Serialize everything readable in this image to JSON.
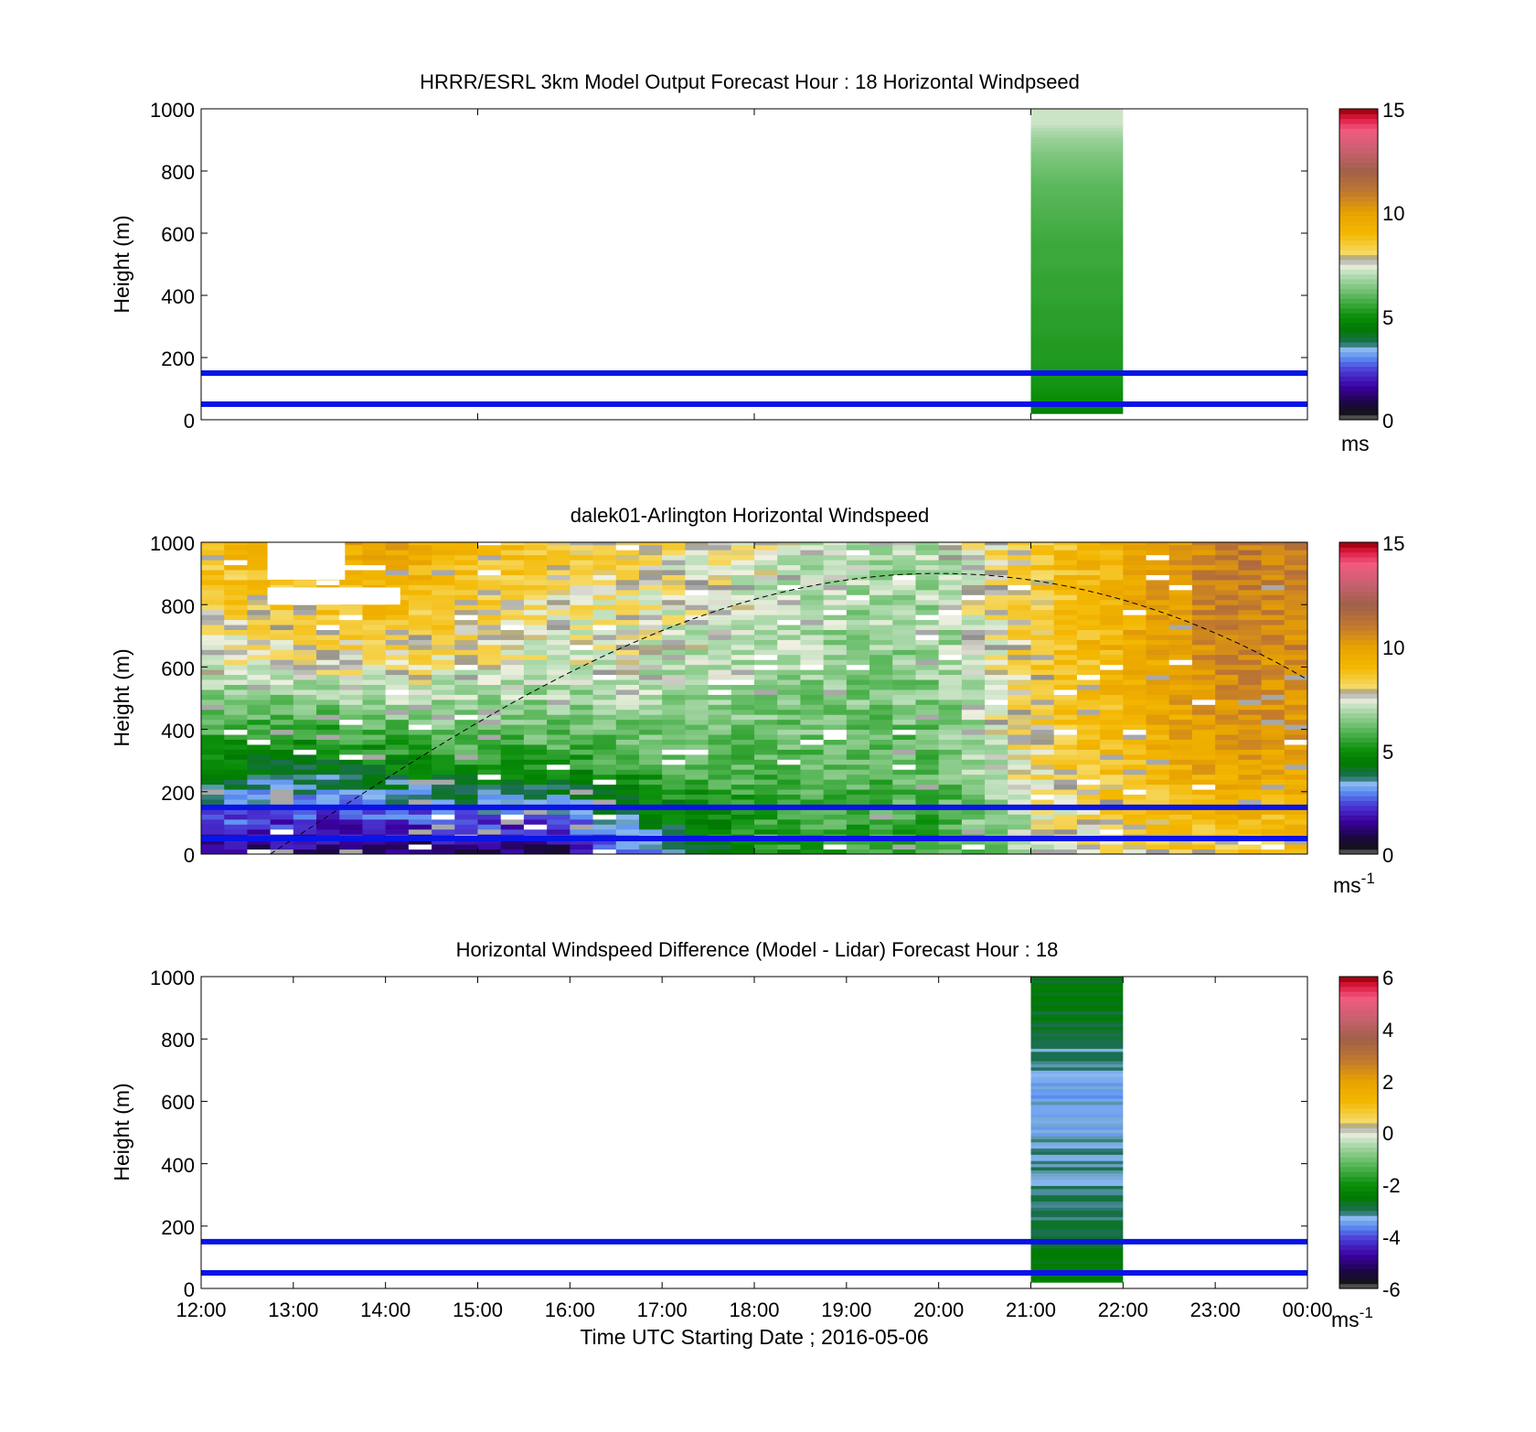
{
  "figure": {
    "x_tick_labels": [
      "12:00",
      "13:00",
      "14:00",
      "15:00",
      "16:00",
      "17:00",
      "18:00",
      "19:00",
      "20:00",
      "21:00",
      "22:00",
      "23:00",
      "00:00"
    ],
    "x_axis_label": "Time UTC  Starting Date ; 2016-05-06"
  },
  "chart_data": [
    {
      "type": "heatmap",
      "title": "HRRR/ESRL 3km Model Output   Forecast Hour : 18 Horizontal Windpseed",
      "ylabel": "Height (m)",
      "ylim": [
        0,
        1000
      ],
      "y_ticks": [
        "0",
        "200",
        "400",
        "600",
        "800",
        "1000"
      ],
      "x_range_utc": [
        "12:00",
        "00:00"
      ],
      "colorbar": {
        "ticks": [
          "0",
          "5",
          "10",
          "15"
        ],
        "range": [
          0,
          15
        ],
        "unit": "ms"
      },
      "reference_lines_m": [
        150,
        50
      ],
      "data_block": {
        "x_start": "21:00",
        "x_end": "22:00",
        "height_bottom": 20,
        "height_top": 1000,
        "profile_heights": [
          20,
          50,
          100,
          150,
          200,
          250,
          300,
          350,
          400,
          450,
          500,
          550,
          600,
          650,
          700,
          750,
          800,
          850,
          900,
          950
        ],
        "profile_values": [
          4.6,
          4.9,
          5.1,
          5.2,
          5.3,
          5.3,
          5.4,
          5.4,
          5.5,
          5.5,
          5.6,
          5.6,
          5.7,
          5.8,
          5.9,
          6.0,
          6.2,
          6.4,
          6.7,
          7.2
        ]
      }
    },
    {
      "type": "heatmap",
      "title": "dalek01-Arlington  Horizontal Windspeed",
      "ylabel": "Height (m)",
      "ylim": [
        0,
        1000
      ],
      "y_ticks": [
        "0",
        "200",
        "400",
        "600",
        "800",
        "1000"
      ],
      "x_range_utc": [
        "12:00",
        "00:00"
      ],
      "colorbar": {
        "ticks": [
          "0",
          "5",
          "10",
          "15"
        ],
        "range": [
          0,
          15
        ],
        "unit": "ms",
        "unit_exp": "-1"
      },
      "reference_lines_m": [
        150,
        50
      ],
      "boundary_curve": {
        "style": "dashed",
        "start": [
          "12:45",
          0
        ],
        "peak": [
          "20:00",
          900
        ],
        "end": [
          "00:00",
          560
        ]
      },
      "columns_summary": [
        {
          "time": "12:00",
          "low": 1.5,
          "mid": 5,
          "high": 9
        },
        {
          "time": "13:00",
          "low": 1.2,
          "mid": 4.5,
          "high": 9.5
        },
        {
          "time": "14:00",
          "low": 1.0,
          "mid": 5,
          "high": 10
        },
        {
          "time": "15:00",
          "low": 1.0,
          "mid": 5.5,
          "high": 9
        },
        {
          "time": "16:00",
          "low": 1.2,
          "mid": 5.5,
          "high": 8.5
        },
        {
          "time": "17:00",
          "low": 3.5,
          "mid": 6,
          "high": 8
        },
        {
          "time": "18:00",
          "low": 5,
          "mid": 6,
          "high": 7.5
        },
        {
          "time": "19:00",
          "low": 5.5,
          "mid": 6,
          "high": 7
        },
        {
          "time": "20:00",
          "low": 5.5,
          "mid": 6,
          "high": 7
        },
        {
          "time": "21:00",
          "low": 7,
          "mid": 8,
          "high": 8.5
        },
        {
          "time": "22:00",
          "low": 8,
          "mid": 9,
          "high": 9.5
        },
        {
          "time": "23:00",
          "low": 8.5,
          "mid": 10,
          "high": 11
        }
      ]
    },
    {
      "type": "heatmap",
      "title": "Horizontal Windspeed Difference (Model - Lidar) Forecast Hour : 18",
      "ylabel": "Height (m)",
      "ylim": [
        0,
        1000
      ],
      "y_ticks": [
        "0",
        "200",
        "400",
        "600",
        "800",
        "1000"
      ],
      "x_range_utc": [
        "12:00",
        "00:00"
      ],
      "colorbar": {
        "ticks": [
          "-6",
          "-4",
          "-2",
          "0",
          "2",
          "4",
          "6"
        ],
        "range": [
          -6,
          6
        ],
        "unit": "ms",
        "unit_exp": "-1"
      },
      "reference_lines_m": [
        150,
        50
      ],
      "data_block": {
        "x_start": "21:00",
        "x_end": "22:00",
        "height_bottom": 20,
        "height_top": 1000,
        "profile_heights": [
          20,
          100,
          200,
          300,
          400,
          500,
          600,
          700,
          800,
          900
        ],
        "profile_values": [
          -2.4,
          -2.6,
          -2.9,
          -3.1,
          -3.2,
          -3.3,
          -3.4,
          -3.2,
          -2.9,
          -2.6
        ]
      }
    }
  ]
}
